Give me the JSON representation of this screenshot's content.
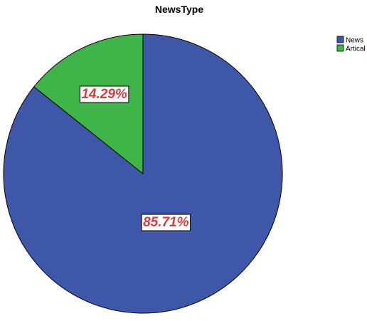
{
  "chart_data": {
    "type": "pie",
    "title": "NewsType",
    "categories": [
      "News",
      "Artical"
    ],
    "values": [
      85.71,
      14.29
    ],
    "data_labels": [
      "85.71%",
      "14.29%"
    ],
    "colors": [
      "#3f57a8",
      "#3fb449"
    ],
    "label_color": "#e03b3b",
    "legend_position": "top-right",
    "start_angle_deg": 0,
    "direction": "clockwise"
  }
}
